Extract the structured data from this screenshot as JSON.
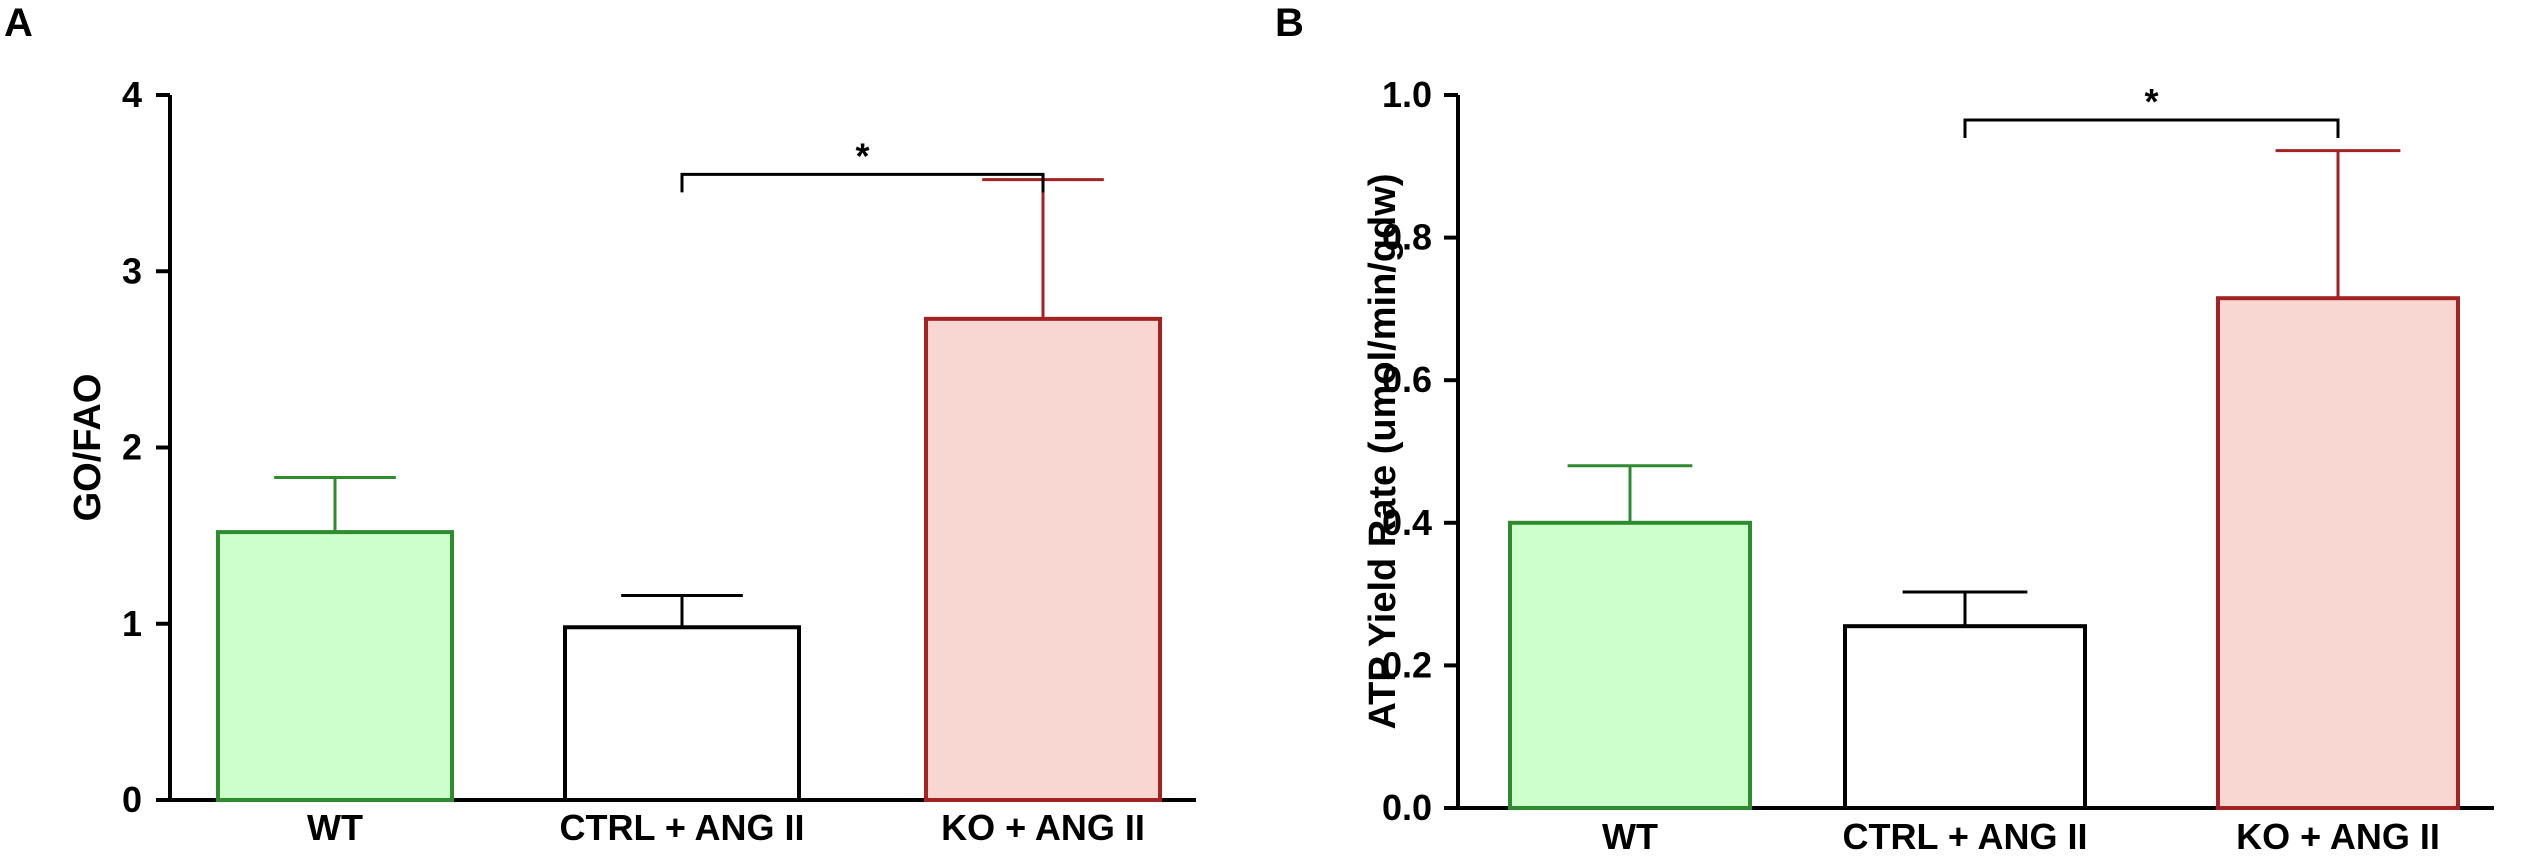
{
  "chart_data": [
    {
      "panel": "A",
      "type": "bar",
      "ylabel": "GO/FAO",
      "xlabel": "",
      "ylim": [
        0,
        4
      ],
      "yticks": [
        "0",
        "1",
        "2",
        "3",
        "4"
      ],
      "categories": [
        "WT",
        "CTRL + ANG II",
        "KO + ANG II"
      ],
      "values": [
        1.52,
        0.98,
        2.73
      ],
      "errors": [
        0.31,
        0.18,
        0.79
      ],
      "fill_colors": [
        "#ccffcc",
        "#ffffff",
        "#f8d7d2"
      ],
      "stroke_colors": [
        "#2e8b2e",
        "#000000",
        "#a52222"
      ],
      "significance": {
        "from": 1,
        "to": 2,
        "label": "*",
        "y": 3.55
      }
    },
    {
      "panel": "B",
      "type": "bar",
      "ylabel": "ATP Yield Rate (umol/min/gdw)",
      "xlabel": "",
      "ylim": [
        0,
        1.0
      ],
      "yticks": [
        "0.0",
        "0.2",
        "0.4",
        "0.6",
        "0.8",
        "1.0"
      ],
      "categories": [
        "WT",
        "CTRL + ANG II",
        "KO + ANG II"
      ],
      "values": [
        0.4,
        0.255,
        0.715
      ],
      "errors": [
        0.08,
        0.048,
        0.207
      ],
      "fill_colors": [
        "#ccffcc",
        "#ffffff",
        "#f8d7d2"
      ],
      "stroke_colors": [
        "#2e8b2e",
        "#000000",
        "#a52222"
      ],
      "significance": {
        "from": 1,
        "to": 2,
        "label": "*",
        "y": 0.965
      }
    }
  ]
}
